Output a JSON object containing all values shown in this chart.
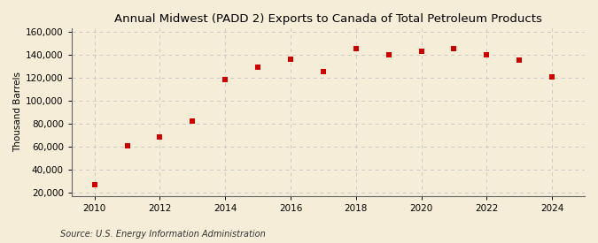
{
  "title": "Annual Midwest (PADD 2) Exports to Canada of Total Petroleum Products",
  "ylabel": "Thousand Barrels",
  "source": "Source: U.S. Energy Information Administration",
  "years": [
    2010,
    2011,
    2012,
    2013,
    2014,
    2015,
    2016,
    2017,
    2018,
    2019,
    2020,
    2021,
    2022,
    2023,
    2024
  ],
  "values": [
    27000,
    61000,
    68000,
    82000,
    118000,
    129000,
    136000,
    125000,
    145000,
    140000,
    143000,
    145500,
    140000,
    135000,
    121000
  ],
  "marker_color": "#cc0000",
  "marker": "s",
  "marker_size": 25,
  "background_color": "#f5edd8",
  "plot_background": "#f5edd8",
  "grid_color": "#c8c8c8",
  "grid_linestyle": "--",
  "ylim": [
    17000,
    163000
  ],
  "yticks": [
    20000,
    40000,
    60000,
    80000,
    100000,
    120000,
    140000,
    160000
  ],
  "xlim": [
    2009.3,
    2025.0
  ],
  "xticks": [
    2010,
    2012,
    2014,
    2016,
    2018,
    2020,
    2022,
    2024
  ],
  "title_fontsize": 9.5,
  "title_fontweight": "normal",
  "axis_fontsize": 7.5,
  "source_fontsize": 7.0,
  "tick_fontsize": 7.5
}
